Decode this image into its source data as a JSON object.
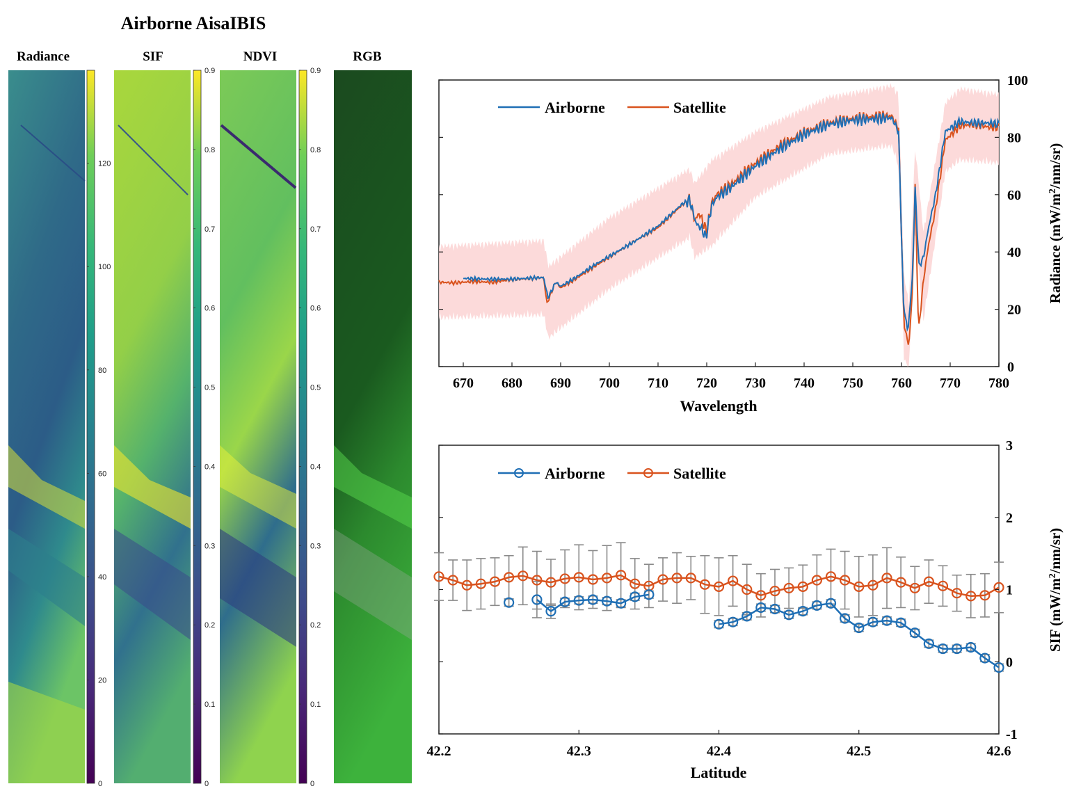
{
  "figure_title": "Airborne AisaIBIS",
  "panels": [
    {
      "key": "radiance",
      "label": "Radiance",
      "colorbar_ticks": [
        "0",
        "20",
        "40",
        "60",
        "80",
        "100",
        "120"
      ],
      "cmin": 0,
      "cmax": 138
    },
    {
      "key": "sif",
      "label": "SIF",
      "colorbar_ticks": [
        "0",
        "0.1",
        "0.2",
        "0.3",
        "0.4",
        "0.5",
        "0.6",
        "0.7",
        "0.8",
        "0.9"
      ],
      "cmin": 0,
      "cmax": 0.9
    },
    {
      "key": "ndvi",
      "label": "NDVI",
      "colorbar_ticks": [
        "0",
        "0.1",
        "0.2",
        "0.3",
        "0.4",
        "0.5",
        "0.6",
        "0.7",
        "0.8",
        "0.9"
      ],
      "cmin": 0,
      "cmax": 0.9
    },
    {
      "key": "rgb",
      "label": "RGB",
      "colorbar_ticks": []
    }
  ],
  "colors": {
    "airborne": "#1f6fb5",
    "satellite": "#d9531e",
    "band": "#fbd3d3",
    "errorbar": "#8a8a8a"
  },
  "chart_data": [
    {
      "type": "line",
      "xlabel": "Wavelength",
      "ylabel": "Radiance (mW/m2/nm/sr)",
      "ylabel_base": "Radiance (mW/m",
      "ylabel_sup": "2",
      "ylabel_tail": "/nm/sr)",
      "xlim": [
        665,
        780
      ],
      "ylim": [
        0,
        100
      ],
      "xticks": [
        670,
        680,
        690,
        700,
        710,
        720,
        730,
        740,
        750,
        760,
        770,
        780
      ],
      "yticks": [
        0,
        20,
        40,
        60,
        80,
        100
      ],
      "legend": [
        "Airborne",
        "Satellite"
      ],
      "legend_position": "top-left",
      "anchors_satellite": [
        [
          665,
          29.5
        ],
        [
          668,
          29.2
        ],
        [
          672,
          29.7
        ],
        [
          676,
          29.4
        ],
        [
          680,
          30.4
        ],
        [
          684,
          30.8
        ],
        [
          686.5,
          31.1
        ],
        [
          687.2,
          22
        ],
        [
          688,
          25.5
        ],
        [
          689,
          29.6
        ],
        [
          690,
          27.5
        ],
        [
          693,
          30.5
        ],
        [
          697,
          35
        ],
        [
          700,
          38.2
        ],
        [
          705,
          43.6
        ],
        [
          710,
          48.5
        ],
        [
          715,
          56.5
        ],
        [
          716.5,
          58.5
        ],
        [
          717.5,
          51
        ],
        [
          718.5,
          53.5
        ],
        [
          720,
          47
        ],
        [
          721,
          57
        ],
        [
          722,
          60
        ],
        [
          725,
          63.5
        ],
        [
          730,
          71
        ],
        [
          735,
          77
        ],
        [
          740,
          81.5
        ],
        [
          745,
          85
        ],
        [
          750,
          86.5
        ],
        [
          755,
          87.3
        ],
        [
          758,
          87.5
        ],
        [
          759.4,
          83
        ],
        [
          760.5,
          15
        ],
        [
          761.5,
          7
        ],
        [
          762.2,
          25
        ],
        [
          762.8,
          63
        ],
        [
          763.5,
          12
        ],
        [
          764.5,
          30
        ],
        [
          765.5,
          42
        ],
        [
          767,
          55
        ],
        [
          769,
          79
        ],
        [
          772,
          84
        ],
        [
          775,
          84.5
        ],
        [
          778,
          83.5
        ],
        [
          780,
          83.5
        ]
      ],
      "anchors_airborne": [
        [
          670,
          30.8
        ],
        [
          675,
          30.5
        ],
        [
          680,
          30.5
        ],
        [
          684,
          30.9
        ],
        [
          686.5,
          31.1
        ],
        [
          687.4,
          24
        ],
        [
          688.3,
          27
        ],
        [
          689,
          29.5
        ],
        [
          690,
          28
        ],
        [
          693,
          31
        ],
        [
          697,
          35.5
        ],
        [
          700,
          38.5
        ],
        [
          705,
          43.5
        ],
        [
          710,
          49
        ],
        [
          715,
          56.8
        ],
        [
          716.5,
          58.2
        ],
        [
          717.8,
          50
        ],
        [
          719,
          48
        ],
        [
          719.8,
          45
        ],
        [
          721,
          56
        ],
        [
          722,
          59
        ],
        [
          725,
          62.5
        ],
        [
          730,
          70
        ],
        [
          735,
          76
        ],
        [
          740,
          81
        ],
        [
          745,
          84.5
        ],
        [
          750,
          86
        ],
        [
          755,
          86.5
        ],
        [
          758,
          86.8
        ],
        [
          759.4,
          82
        ],
        [
          760.4,
          22
        ],
        [
          761.3,
          12
        ],
        [
          762.2,
          30
        ],
        [
          762.8,
          62
        ],
        [
          763.6,
          35
        ],
        [
          764.5,
          38
        ],
        [
          765.5,
          48
        ],
        [
          767,
          60
        ],
        [
          769,
          82
        ],
        [
          772,
          85.5
        ],
        [
          775,
          85
        ],
        [
          778,
          85
        ],
        [
          780,
          84.5
        ]
      ],
      "band_upper": [
        [
          665,
          40
        ],
        [
          686.5,
          42
        ],
        [
          687.5,
          33
        ],
        [
          700,
          50
        ],
        [
          716.5,
          67
        ],
        [
          717.5,
          62
        ],
        [
          721,
          70
        ],
        [
          730,
          80
        ],
        [
          745,
          92
        ],
        [
          758,
          96
        ],
        [
          759.4,
          93
        ],
        [
          760.5,
          30
        ],
        [
          761.5,
          20
        ],
        [
          762.8,
          75
        ],
        [
          764.5,
          45
        ],
        [
          769,
          90
        ],
        [
          772,
          95
        ],
        [
          780,
          93
        ]
      ],
      "band_lower": [
        [
          665,
          19
        ],
        [
          686.5,
          20
        ],
        [
          687.5,
          12
        ],
        [
          700,
          29
        ],
        [
          716.5,
          47
        ],
        [
          717.5,
          40
        ],
        [
          721,
          44
        ],
        [
          730,
          61
        ],
        [
          745,
          76
        ],
        [
          758,
          79
        ],
        [
          759.4,
          72
        ],
        [
          760.5,
          5
        ],
        [
          761.5,
          1
        ],
        [
          762.8,
          50
        ],
        [
          764.5,
          18
        ],
        [
          769,
          70
        ],
        [
          772,
          74
        ],
        [
          780,
          73
        ]
      ]
    },
    {
      "type": "scatter",
      "xlabel": "Latitude",
      "ylabel": "SIF (mW/m2/nm/sr)",
      "ylabel_base": "SIF (mW/m",
      "ylabel_sup": "2",
      "ylabel_tail": "/nm/sr)",
      "xlim": [
        42.2,
        42.6
      ],
      "ylim": [
        -1,
        3
      ],
      "xticks": [
        "42.2",
        "42.3",
        "42.4",
        "42.5",
        "42.6"
      ],
      "yticks": [
        "-1",
        "0",
        "1",
        "2",
        "3"
      ],
      "legend": [
        "Airborne",
        "Satellite"
      ],
      "legend_position": "top-left",
      "satellite": {
        "x": [
          42.2,
          42.21,
          42.22,
          42.23,
          42.24,
          42.25,
          42.26,
          42.27,
          42.28,
          42.29,
          42.3,
          42.31,
          42.32,
          42.33,
          42.34,
          42.35,
          42.36,
          42.37,
          42.38,
          42.39,
          42.4,
          42.41,
          42.42,
          42.43,
          42.44,
          42.45,
          42.46,
          42.47,
          42.48,
          42.49,
          42.5,
          42.51,
          42.52,
          42.53,
          42.54,
          42.55,
          42.56,
          42.57,
          42.58,
          42.59,
          42.6
        ],
        "y": [
          1.18,
          1.13,
          1.06,
          1.08,
          1.11,
          1.17,
          1.19,
          1.13,
          1.1,
          1.15,
          1.17,
          1.14,
          1.16,
          1.2,
          1.08,
          1.05,
          1.14,
          1.16,
          1.16,
          1.07,
          1.04,
          1.12,
          1.0,
          0.92,
          0.98,
          1.02,
          1.04,
          1.13,
          1.18,
          1.13,
          1.04,
          1.06,
          1.16,
          1.1,
          1.02,
          1.11,
          1.05,
          0.95,
          0.91,
          0.92,
          1.03
        ],
        "err": [
          0.33,
          0.28,
          0.35,
          0.35,
          0.33,
          0.3,
          0.4,
          0.4,
          0.32,
          0.4,
          0.45,
          0.4,
          0.45,
          0.45,
          0.35,
          0.3,
          0.3,
          0.35,
          0.3,
          0.4,
          0.4,
          0.35,
          0.35,
          0.3,
          0.3,
          0.28,
          0.3,
          0.35,
          0.38,
          0.4,
          0.42,
          0.42,
          0.42,
          0.35,
          0.3,
          0.3,
          0.28,
          0.25,
          0.3,
          0.3,
          0.35
        ]
      },
      "airborne": {
        "x": [
          42.25,
          42.27,
          42.28,
          42.29,
          42.3,
          42.31,
          42.32,
          42.33,
          42.34,
          42.35,
          42.4,
          42.41,
          42.42,
          42.43,
          42.44,
          42.45,
          42.46,
          42.47,
          42.48,
          42.49,
          42.5,
          42.51,
          42.52,
          42.53,
          42.54,
          42.55,
          42.56,
          42.57,
          42.58,
          42.59,
          42.6
        ],
        "y": [
          0.82,
          0.86,
          0.7,
          0.83,
          0.85,
          0.86,
          0.84,
          0.81,
          0.9,
          0.93,
          0.52,
          0.55,
          0.63,
          0.75,
          0.73,
          0.65,
          0.7,
          0.78,
          0.81,
          0.6,
          0.47,
          0.55,
          0.57,
          0.54,
          0.4,
          0.25,
          0.18,
          0.18,
          0.2,
          0.05,
          -0.08
        ],
        "err": [
          0.05,
          0.25,
          0.1,
          0.05,
          0.05,
          0.05,
          0.05,
          0.05,
          0.05,
          0.05,
          0.05,
          0.05,
          0.05,
          0.05,
          0.05,
          0.05,
          0.05,
          0.05,
          0.05,
          0.05,
          0.05,
          0.05,
          0.05,
          0.05,
          0.05,
          0.05,
          0.05,
          0.05,
          0.05,
          0.05,
          0.05
        ]
      }
    }
  ]
}
